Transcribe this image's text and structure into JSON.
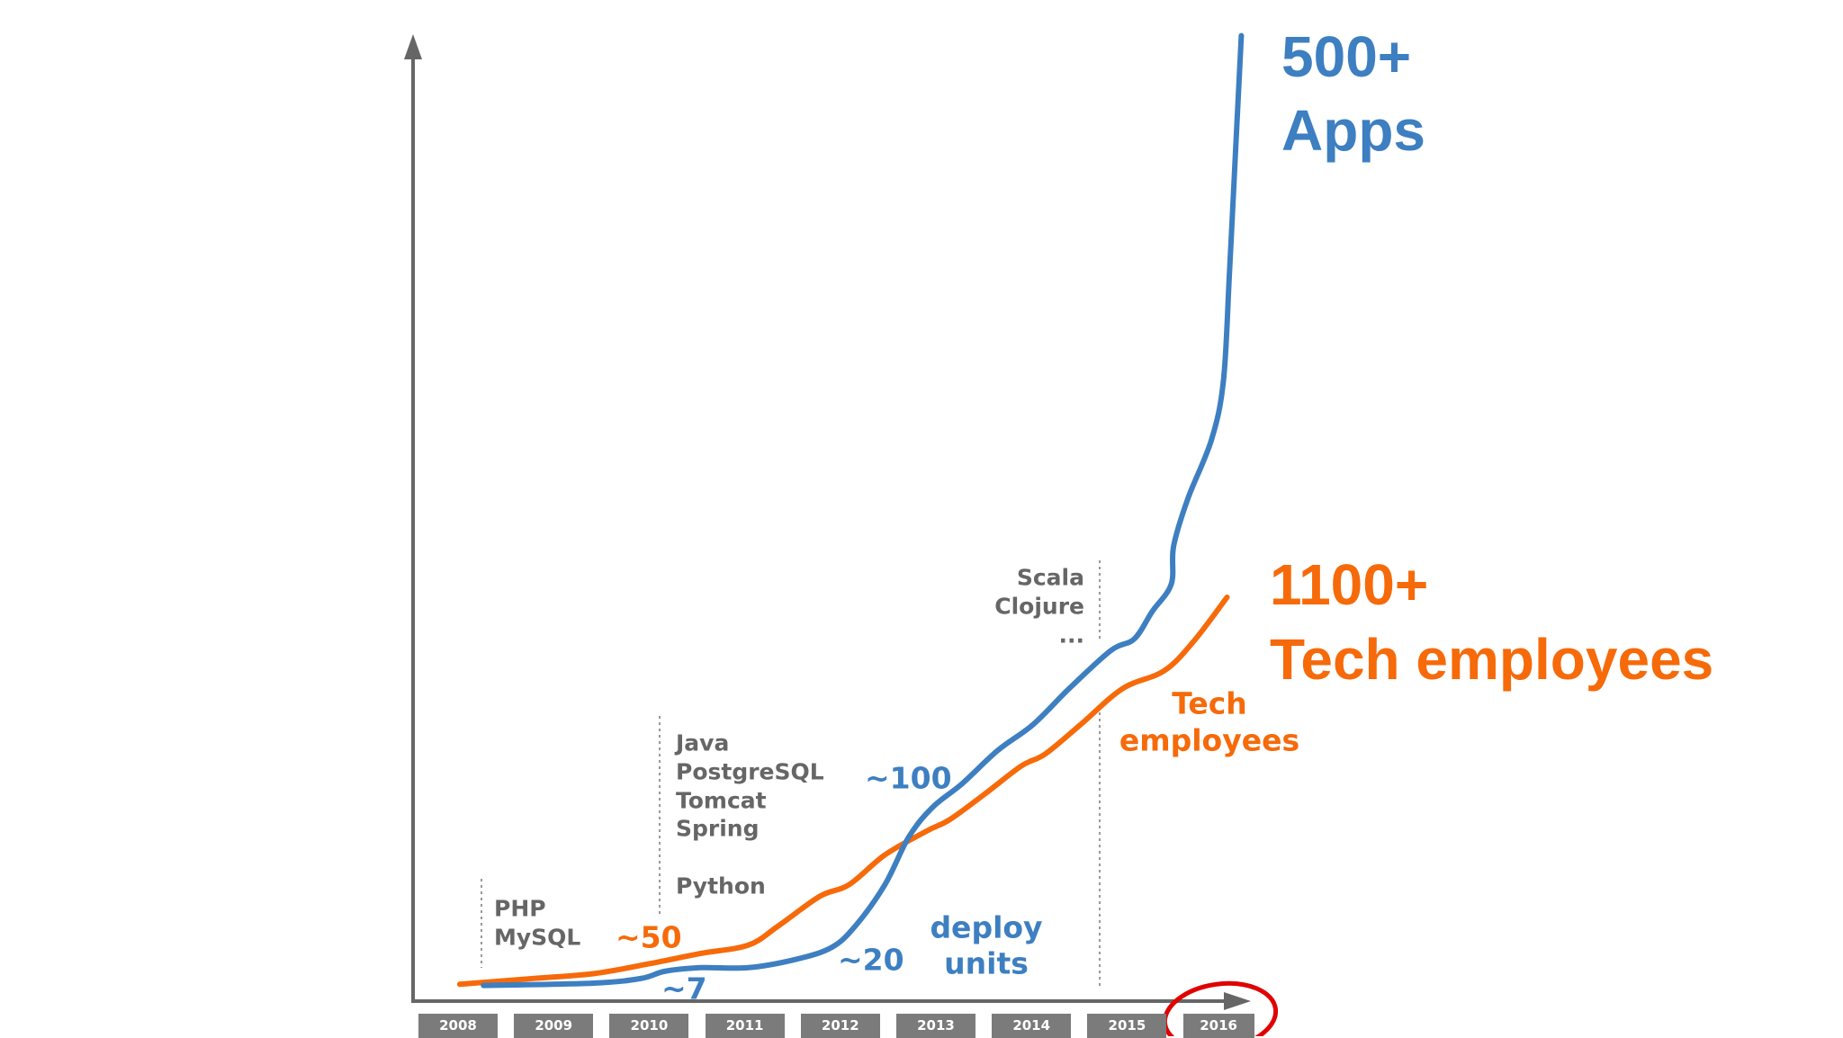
{
  "chart_data": {
    "type": "line",
    "categories": [
      "2008",
      "2009",
      "2010",
      "2011",
      "2012",
      "2013",
      "2014",
      "2015",
      "2016"
    ],
    "highlighted_category": "2016",
    "series": [
      {
        "name": "deploy units",
        "color": "#3d7fc1",
        "labeled_points": [
          {
            "x": "2010",
            "label": "~7"
          },
          {
            "x": "2012",
            "label": "~20"
          },
          {
            "x": "2013",
            "label": "~100"
          },
          {
            "x": "2016",
            "label": "500+"
          }
        ]
      },
      {
        "name": "Tech employees",
        "color": "#f66a0a",
        "labeled_points": [
          {
            "x": "2010",
            "label": "~50"
          },
          {
            "x": "2016",
            "label": "1100+"
          }
        ]
      }
    ],
    "highlight_color": "#e00000"
  },
  "labels": {
    "apps_count": "500+",
    "apps_word": "Apps",
    "employees_count": "1100+",
    "employees_word": "Tech employees",
    "tech_line1": "Tech",
    "tech_line2": "employees",
    "deploy_line1": "deploy",
    "deploy_line2": "units",
    "approx_7": "~7",
    "approx_20": "~20",
    "approx_50": "~50",
    "approx_100": "~100"
  },
  "tech_eras": {
    "era1": [
      "PHP",
      "MySQL"
    ],
    "era2": [
      "Java",
      "PostgreSQL",
      "Tomcat",
      "Spring",
      "Python"
    ],
    "era3": [
      "Scala",
      "Clojure",
      "..."
    ]
  }
}
